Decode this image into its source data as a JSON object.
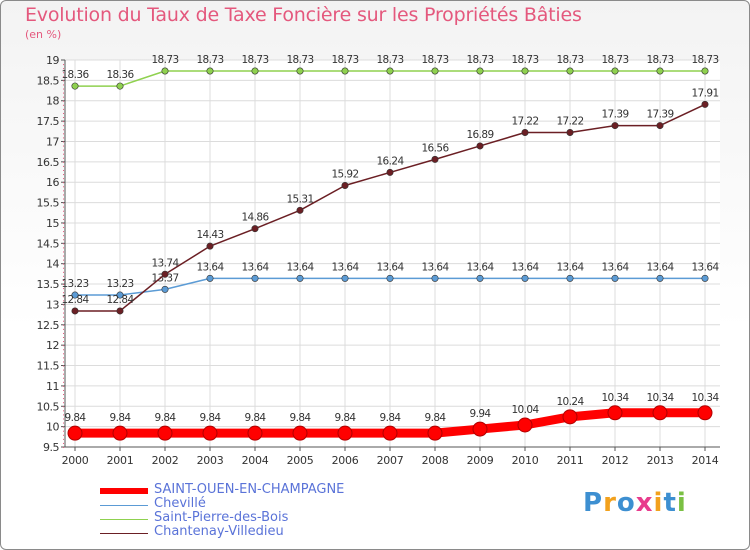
{
  "chart_data": {
    "type": "line",
    "title": "Evolution du Taux de Taxe Foncière sur les Propriétés Bâties",
    "ylabel": "(en %)",
    "xlabel": "",
    "categories": [
      "2000",
      "2001",
      "2002",
      "2003",
      "2004",
      "2005",
      "2006",
      "2007",
      "2008",
      "2009",
      "2010",
      "2011",
      "2012",
      "2013",
      "2014"
    ],
    "ylim": [
      9.5,
      19
    ],
    "yticks": [
      9.5,
      10,
      10.5,
      11,
      11.5,
      12,
      12.5,
      13,
      13.5,
      14,
      14.5,
      15,
      15.5,
      16,
      16.5,
      17,
      17.5,
      18,
      18.5,
      19
    ],
    "ytick_labels": [
      "9.5",
      "10",
      "10.5",
      "11",
      "11.5",
      "12",
      "12.5",
      "13",
      "13.5",
      "14",
      "14.5",
      "15",
      "15.5",
      "16",
      "16.5",
      "17",
      "17.5",
      "18",
      "18.5",
      "19"
    ],
    "grid": true,
    "series": [
      {
        "name": "SAINT-OUEN-EN-CHAMPAGNE",
        "color": "#ff0000",
        "bold": true,
        "values": [
          9.84,
          9.84,
          9.84,
          9.84,
          9.84,
          9.84,
          9.84,
          9.84,
          9.84,
          9.94,
          10.04,
          10.24,
          10.34,
          10.34,
          10.34
        ],
        "labels": [
          "9.84",
          "9.84",
          "9.84",
          "9.84",
          "9.84",
          "9.84",
          "9.84",
          "9.84",
          "9.84",
          "9.94",
          "10.04",
          "10.24",
          "10.34",
          "10.34",
          "10.34"
        ]
      },
      {
        "name": "Chevillé",
        "color": "#5b9bd5",
        "bold": false,
        "values": [
          13.23,
          13.23,
          13.37,
          13.64,
          13.64,
          13.64,
          13.64,
          13.64,
          13.64,
          13.64,
          13.64,
          13.64,
          13.64,
          13.64,
          13.64
        ],
        "labels": [
          "13.23",
          "13.23",
          "13.37",
          "13.64",
          "13.64",
          "13.64",
          "13.64",
          "13.64",
          "13.64",
          "13.64",
          "13.64",
          "13.64",
          "13.64",
          "13.64",
          "13.64"
        ]
      },
      {
        "name": "Saint-Pierre-des-Bois",
        "color": "#8fd14f",
        "bold": false,
        "values": [
          18.36,
          18.36,
          18.73,
          18.73,
          18.73,
          18.73,
          18.73,
          18.73,
          18.73,
          18.73,
          18.73,
          18.73,
          18.73,
          18.73,
          18.73
        ],
        "labels": [
          "18.36",
          "18.36",
          "18.73",
          "18.73",
          "18.73",
          "18.73",
          "18.73",
          "18.73",
          "18.73",
          "18.73",
          "18.73",
          "18.73",
          "18.73",
          "18.73",
          "18.73"
        ]
      },
      {
        "name": "Chantenay-Villedieu",
        "color": "#6b1f24",
        "bold": false,
        "values": [
          12.84,
          12.84,
          13.74,
          14.43,
          14.86,
          15.31,
          15.92,
          16.24,
          16.56,
          16.89,
          17.22,
          17.22,
          17.39,
          17.39,
          17.91
        ],
        "labels": [
          "12.84",
          "12.84",
          "13.74",
          "14.43",
          "14.86",
          "15.31",
          "15.92",
          "16.24",
          "16.56",
          "16.89",
          "17.22",
          "17.22",
          "17.39",
          "17.39",
          "17.91"
        ]
      }
    ]
  },
  "logo": {
    "text": "Proxiti"
  }
}
